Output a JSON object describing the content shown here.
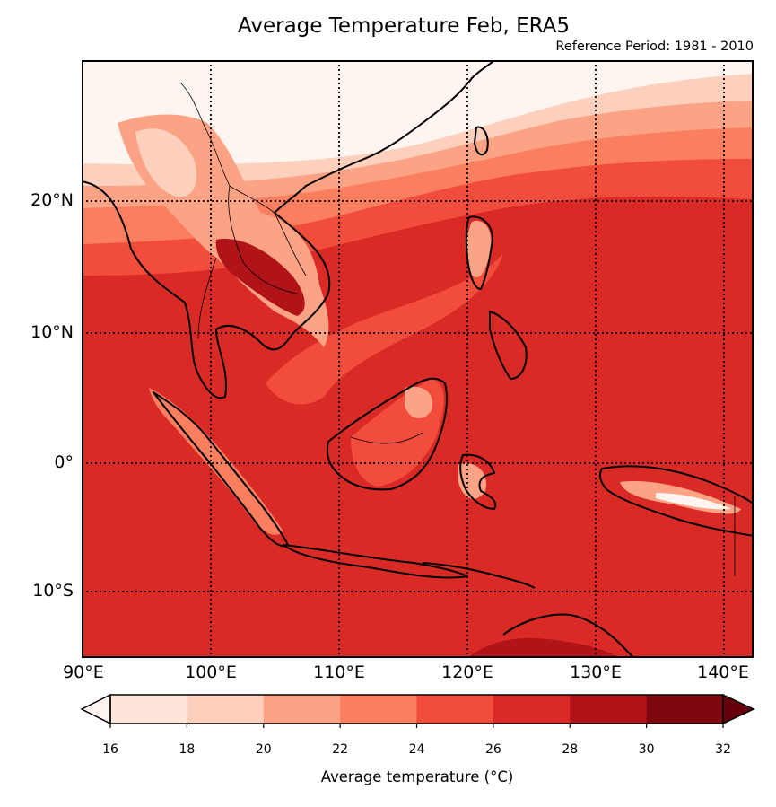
{
  "title": "Average Temperature Feb, ERA5",
  "subtitle": "Reference Period: 1981 - 2010",
  "map": {
    "lon_range": [
      90,
      142.5
    ],
    "lat_range": [
      -15,
      31
    ],
    "lon_ticks": [
      "90°E",
      "100°E",
      "110°E",
      "120°E",
      "130°E",
      "140°E"
    ],
    "lat_ticks": [
      "20°N",
      "10°N",
      "0°",
      "10°S"
    ],
    "gridlines": "dotted"
  },
  "colorbar": {
    "label": "Average temperature (°C)",
    "ticks": [
      "16",
      "18",
      "20",
      "22",
      "24",
      "26",
      "28",
      "30",
      "32"
    ],
    "bins": [
      {
        "range": [
          16,
          18
        ],
        "color": "#fee5d9"
      },
      {
        "range": [
          18,
          20
        ],
        "color": "#fcd0bc"
      },
      {
        "range": [
          20,
          22
        ],
        "color": "#fca385"
      },
      {
        "range": [
          22,
          24
        ],
        "color": "#fb7f5f"
      },
      {
        "range": [
          24,
          26
        ],
        "color": "#f24c3c"
      },
      {
        "range": [
          26,
          28
        ],
        "color": "#da2a26"
      },
      {
        "range": [
          28,
          30
        ],
        "color": "#b01419"
      },
      {
        "range": [
          30,
          32
        ],
        "color": "#7e0710"
      }
    ],
    "under_color": "#fff5f0",
    "over_color": "#67000d",
    "extend": "both"
  }
}
